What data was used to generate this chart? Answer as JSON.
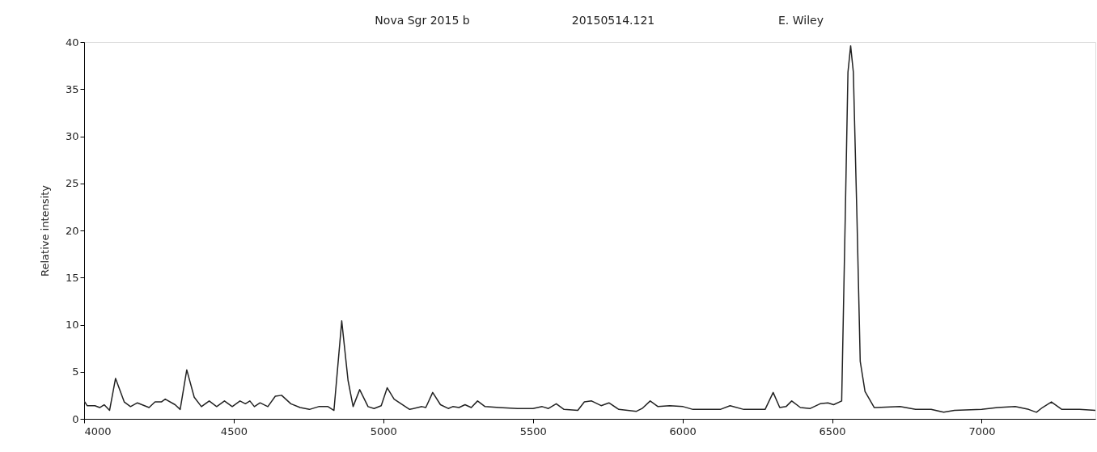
{
  "chart_data": {
    "type": "line",
    "title": "Nova Sgr 2015 b",
    "annotations": [
      "20150514.121",
      "E. Wiley"
    ],
    "ylabel": "Relative intensity",
    "xlim": [
      4000,
      7380
    ],
    "xticks": [
      4000,
      4500,
      5000,
      5500,
      6000,
      6500,
      7000
    ],
    "ylim": [
      0,
      40
    ],
    "yticks": [
      0,
      5,
      10,
      15,
      20,
      25,
      30,
      35,
      40
    ],
    "grid": false,
    "marker": "none",
    "line_style": "solid",
    "series": [
      {
        "color": "#222222",
        "x": [
          4000,
          4010,
          4036,
          4052,
          4067,
          4085,
          4105,
          4134,
          4155,
          4178,
          4217,
          4237,
          4258,
          4271,
          4304,
          4321,
          4343,
          4368,
          4392,
          4418,
          4443,
          4469,
          4495,
          4521,
          4539,
          4554,
          4569,
          4588,
          4614,
          4639,
          4660,
          4691,
          4722,
          4753,
          4784,
          4815,
          4835,
          4861,
          4882,
          4899,
          4921,
          4949,
          4969,
          4993,
          5013,
          5036,
          5088,
          5129,
          5142,
          5165,
          5191,
          5217,
          5232,
          5253,
          5273,
          5294,
          5315,
          5340,
          5387,
          5449,
          5500,
          5531,
          5552,
          5578,
          5604,
          5650,
          5672,
          5696,
          5728,
          5754,
          5787,
          5846,
          5865,
          5892,
          5918,
          5957,
          6002,
          6035,
          6126,
          6159,
          6205,
          6276,
          6303,
          6325,
          6346,
          6365,
          6394,
          6427,
          6460,
          6486,
          6505,
          6532,
          6544,
          6553,
          6562,
          6571,
          6583,
          6594,
          6610,
          6641,
          6648,
          6727,
          6779,
          6831,
          6873,
          6909,
          7000,
          7053,
          7112,
          7157,
          7183,
          7203,
          7233,
          7268,
          7327,
          7380
        ],
        "values": [
          1.9,
          1.4,
          1.4,
          1.2,
          1.5,
          0.9,
          4.3,
          1.8,
          1.3,
          1.7,
          1.2,
          1.8,
          1.8,
          2.1,
          1.5,
          1.0,
          5.2,
          2.3,
          1.3,
          1.9,
          1.3,
          1.9,
          1.3,
          1.9,
          1.6,
          1.9,
          1.3,
          1.7,
          1.3,
          2.4,
          2.5,
          1.6,
          1.2,
          1.0,
          1.3,
          1.3,
          0.9,
          10.4,
          4.1,
          1.3,
          3.1,
          1.3,
          1.1,
          1.4,
          3.3,
          2.1,
          1.0,
          1.3,
          1.2,
          2.8,
          1.5,
          1.1,
          1.3,
          1.2,
          1.5,
          1.2,
          1.9,
          1.3,
          1.2,
          1.1,
          1.1,
          1.3,
          1.1,
          1.6,
          1.0,
          0.9,
          1.8,
          1.9,
          1.4,
          1.7,
          1.0,
          0.8,
          1.1,
          1.9,
          1.3,
          1.4,
          1.3,
          1.0,
          1.0,
          1.4,
          1.0,
          1.0,
          2.8,
          1.2,
          1.3,
          1.9,
          1.2,
          1.1,
          1.6,
          1.7,
          1.5,
          1.9,
          21.5,
          36.8,
          39.6,
          36.8,
          21.5,
          6.1,
          2.9,
          1.2,
          1.2,
          1.3,
          1.0,
          1.0,
          0.7,
          0.9,
          1.0,
          1.2,
          1.3,
          1.0,
          0.7,
          1.2,
          1.8,
          1.0,
          1.0,
          0.9
        ]
      }
    ]
  }
}
